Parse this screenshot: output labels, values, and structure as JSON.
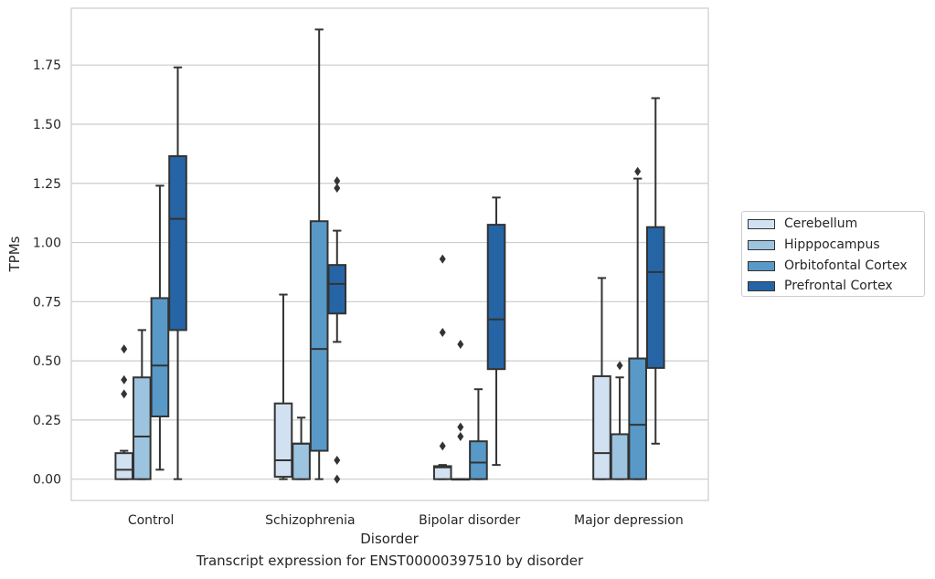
{
  "chart_data": {
    "type": "boxplot",
    "title": "Transcript expression for ENST00000397510 by disorder",
    "xlabel": "Disorder",
    "ylabel": "TPMs",
    "ylim": [
      -0.09,
      1.99
    ],
    "yticks": [
      "0.00",
      "0.25",
      "0.50",
      "0.75",
      "1.00",
      "1.25",
      "1.50",
      "1.75"
    ],
    "categories": [
      "Control",
      "Schizophrenia",
      "Bipolar disorder",
      "Major depression"
    ],
    "grid": true,
    "legend_position": "right",
    "series": [
      {
        "name": "Cerebellum",
        "color": "#d1e1f1",
        "boxes": [
          {
            "whislo": 0.0,
            "q1": 0.0,
            "med": 0.04,
            "q3": 0.11,
            "whishi": 0.12,
            "fliers": [
              0.36,
              0.42,
              0.55
            ]
          },
          {
            "whislo": 0.0,
            "q1": 0.01,
            "med": 0.08,
            "q3": 0.32,
            "whishi": 0.78,
            "fliers": []
          },
          {
            "whislo": 0.0,
            "q1": 0.0,
            "med": 0.05,
            "q3": 0.055,
            "whishi": 0.06,
            "fliers": [
              0.14,
              0.62,
              0.93
            ]
          },
          {
            "whislo": 0.0,
            "q1": 0.0,
            "med": 0.11,
            "q3": 0.435,
            "whishi": 0.85,
            "fliers": []
          }
        ]
      },
      {
        "name": "Hipppocampus",
        "color": "#9cc4df",
        "boxes": [
          {
            "whislo": 0.0,
            "q1": 0.0,
            "med": 0.18,
            "q3": 0.43,
            "whishi": 0.63,
            "fliers": []
          },
          {
            "whislo": 0.0,
            "q1": 0.0,
            "med": 0.15,
            "q3": 0.15,
            "whishi": 0.26,
            "fliers": []
          },
          {
            "whislo": 0.0,
            "q1": 0.0,
            "med": 0.0,
            "q3": 0.0,
            "whishi": 0.0,
            "fliers": [
              0.18,
              0.22,
              0.57
            ]
          },
          {
            "whislo": 0.0,
            "q1": 0.0,
            "med": 0.19,
            "q3": 0.19,
            "whishi": 0.43,
            "fliers": [
              0.48
            ]
          }
        ]
      },
      {
        "name": "Orbitofontal Cortex",
        "color": "#5899c7",
        "boxes": [
          {
            "whislo": 0.04,
            "q1": 0.265,
            "med": 0.48,
            "q3": 0.765,
            "whishi": 1.24,
            "fliers": []
          },
          {
            "whislo": 0.0,
            "q1": 0.12,
            "med": 0.55,
            "q3": 1.09,
            "whishi": 1.9,
            "fliers": []
          },
          {
            "whislo": 0.0,
            "q1": 0.0,
            "med": 0.07,
            "q3": 0.16,
            "whishi": 0.38,
            "fliers": []
          },
          {
            "whislo": 0.0,
            "q1": 0.0,
            "med": 0.23,
            "q3": 0.51,
            "whishi": 1.27,
            "fliers": [
              1.3
            ]
          }
        ]
      },
      {
        "name": "Prefrontal Cortex",
        "color": "#2565a6",
        "boxes": [
          {
            "whislo": 0.0,
            "q1": 0.63,
            "med": 1.1,
            "q3": 1.365,
            "whishi": 1.74,
            "fliers": []
          },
          {
            "whislo": 0.58,
            "q1": 0.7,
            "med": 0.825,
            "q3": 0.905,
            "whishi": 1.05,
            "fliers": [
              0.0,
              0.08,
              1.23,
              1.26
            ]
          },
          {
            "whislo": 0.06,
            "q1": 0.465,
            "med": 0.675,
            "q3": 1.075,
            "whishi": 1.19,
            "fliers": []
          },
          {
            "whislo": 0.15,
            "q1": 0.47,
            "med": 0.875,
            "q3": 1.065,
            "whishi": 1.61,
            "fliers": []
          }
        ]
      }
    ]
  }
}
